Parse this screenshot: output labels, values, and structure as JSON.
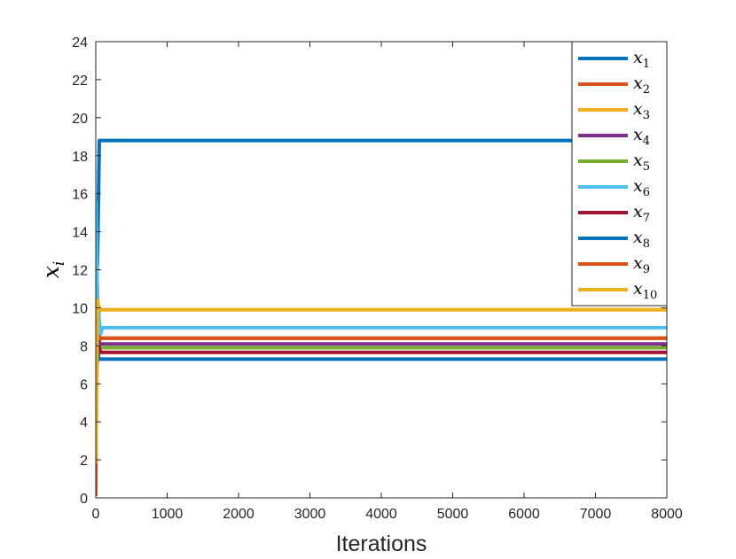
{
  "chart_data": {
    "type": "line",
    "xlabel": "Iterations",
    "ylabel": {
      "base": "x",
      "sub": "i"
    },
    "xlim": [
      0,
      8000
    ],
    "ylim": [
      0,
      24
    ],
    "xticks": [
      0,
      1000,
      2000,
      3000,
      4000,
      5000,
      6000,
      7000,
      8000
    ],
    "yticks": [
      0,
      2,
      4,
      6,
      8,
      10,
      12,
      14,
      16,
      18,
      20,
      22,
      24
    ],
    "grid": false,
    "legend_position": "top-right",
    "series": [
      {
        "name": "x1",
        "label_base": "x",
        "label_sub": "1",
        "color": "#0072BD",
        "points": [
          [
            0,
            10.5
          ],
          [
            25,
            12.5
          ],
          [
            50,
            18.8
          ],
          [
            8000,
            18.8
          ]
        ]
      },
      {
        "name": "x2",
        "label_base": "x",
        "label_sub": "2",
        "color": "#D95319",
        "points": [
          [
            0,
            0.1
          ],
          [
            20,
            11.2
          ],
          [
            45,
            8.4
          ],
          [
            8000,
            8.4
          ]
        ]
      },
      {
        "name": "x3",
        "label_base": "x",
        "label_sub": "3",
        "color": "#EDB120",
        "points": [
          [
            0,
            2.0
          ],
          [
            25,
            8.5
          ],
          [
            50,
            9.9
          ],
          [
            8000,
            9.9
          ]
        ]
      },
      {
        "name": "x4",
        "label_base": "x",
        "label_sub": "4",
        "color": "#7E2F8E",
        "points": [
          [
            0,
            7.0
          ],
          [
            30,
            8.6
          ],
          [
            60,
            8.1
          ],
          [
            8000,
            8.1
          ]
        ]
      },
      {
        "name": "x5",
        "label_base": "x",
        "label_sub": "5",
        "color": "#77AC30",
        "points": [
          [
            0,
            6.5
          ],
          [
            30,
            8.0
          ],
          [
            60,
            7.9
          ],
          [
            8000,
            7.9
          ]
        ]
      },
      {
        "name": "x6",
        "label_base": "x",
        "label_sub": "6",
        "color": "#4DBEEE",
        "points": [
          [
            0,
            15.7
          ],
          [
            25,
            10.5
          ],
          [
            50,
            9.3
          ],
          [
            70,
            8.6
          ],
          [
            90,
            8.95
          ],
          [
            8000,
            8.95
          ]
        ]
      },
      {
        "name": "x7",
        "label_base": "x",
        "label_sub": "7",
        "color": "#A2142F",
        "points": [
          [
            0,
            10.0
          ],
          [
            25,
            7.2
          ],
          [
            50,
            7.9
          ],
          [
            70,
            7.65
          ],
          [
            8000,
            7.65
          ]
        ]
      },
      {
        "name": "x8",
        "label_base": "x",
        "label_sub": "8",
        "color": "#0072BD",
        "points": [
          [
            0,
            6.0
          ],
          [
            25,
            7.6
          ],
          [
            50,
            7.3
          ],
          [
            8000,
            7.3
          ]
        ]
      },
      {
        "name": "x9",
        "label_base": "x",
        "label_sub": "9",
        "color": "#D95319",
        "points": [
          [
            0,
            8.0
          ],
          [
            25,
            8.6
          ],
          [
            50,
            8.4
          ],
          [
            8000,
            8.4
          ]
        ]
      },
      {
        "name": "x10",
        "label_base": "x",
        "label_sub": "10",
        "color": "#EDB120",
        "points": [
          [
            0,
            1.8
          ],
          [
            25,
            10.4
          ],
          [
            50,
            9.9
          ],
          [
            8000,
            9.9
          ]
        ]
      }
    ]
  }
}
